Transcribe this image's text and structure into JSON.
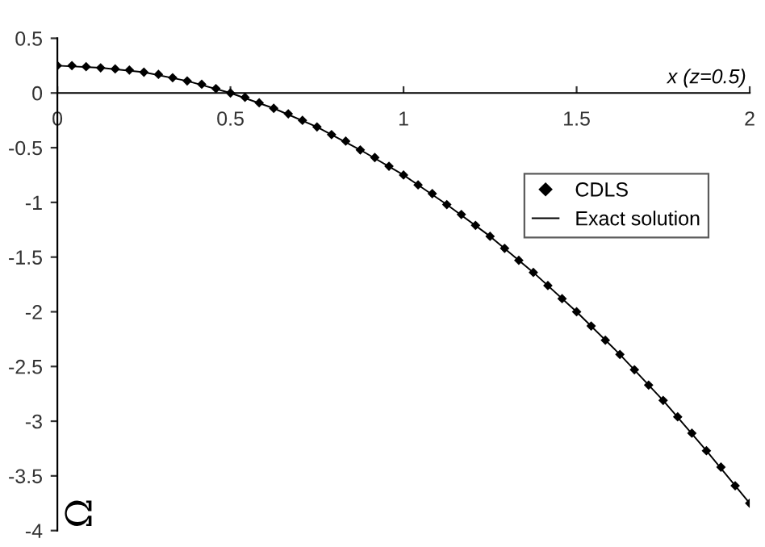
{
  "chart_data": {
    "type": "line",
    "xlabel": "x (z=0.5)",
    "ylabel": "Ω",
    "xlim": [
      0,
      2
    ],
    "ylim": [
      -4,
      0.5
    ],
    "xticks": [
      0,
      0.5,
      1,
      1.5,
      2
    ],
    "yticks": [
      -4,
      -3.5,
      -3,
      -2.5,
      -2,
      -1.5,
      -1,
      -0.5,
      0,
      0.5
    ],
    "grid": false,
    "legend": "right",
    "series": [
      {
        "name": "CDLS",
        "type": "scatter",
        "marker": "diamond",
        "color": "#000000",
        "x": [
          0,
          0.042,
          0.083,
          0.125,
          0.167,
          0.208,
          0.25,
          0.292,
          0.333,
          0.375,
          0.417,
          0.458,
          0.5,
          0.542,
          0.583,
          0.625,
          0.667,
          0.708,
          0.75,
          0.792,
          0.833,
          0.875,
          0.917,
          0.958,
          1,
          1.042,
          1.083,
          1.125,
          1.167,
          1.208,
          1.25,
          1.292,
          1.333,
          1.375,
          1.417,
          1.458,
          1.5,
          1.542,
          1.583,
          1.625,
          1.667,
          1.708,
          1.75,
          1.792,
          1.833,
          1.875,
          1.917,
          1.958,
          2
        ],
        "values": [
          0.25,
          0.25,
          0.24,
          0.23,
          0.22,
          0.21,
          0.19,
          0.17,
          0.14,
          0.11,
          0.08,
          0.04,
          0,
          -0.04,
          -0.09,
          -0.14,
          -0.19,
          -0.25,
          -0.31,
          -0.38,
          -0.44,
          -0.52,
          -0.59,
          -0.67,
          -0.75,
          -0.84,
          -0.92,
          -1.02,
          -1.11,
          -1.21,
          -1.31,
          -1.42,
          -1.53,
          -1.64,
          -1.76,
          -1.88,
          -2,
          -2.13,
          -2.26,
          -2.39,
          -2.53,
          -2.67,
          -2.81,
          -2.96,
          -3.11,
          -3.27,
          -3.42,
          -3.59,
          -3.75
        ]
      },
      {
        "name": "Exact solution",
        "line_style": "solid",
        "color": "#000000",
        "x": [
          0,
          0.125,
          0.25,
          0.375,
          0.5,
          0.625,
          0.75,
          0.875,
          1,
          1.125,
          1.25,
          1.375,
          1.5,
          1.625,
          1.75,
          1.875,
          2
        ],
        "values": [
          0.25,
          0.23,
          0.19,
          0.11,
          0,
          -0.14,
          -0.31,
          -0.52,
          -0.75,
          -1.02,
          -1.31,
          -1.64,
          -2,
          -2.39,
          -2.81,
          -3.27,
          -3.75
        ]
      }
    ]
  }
}
